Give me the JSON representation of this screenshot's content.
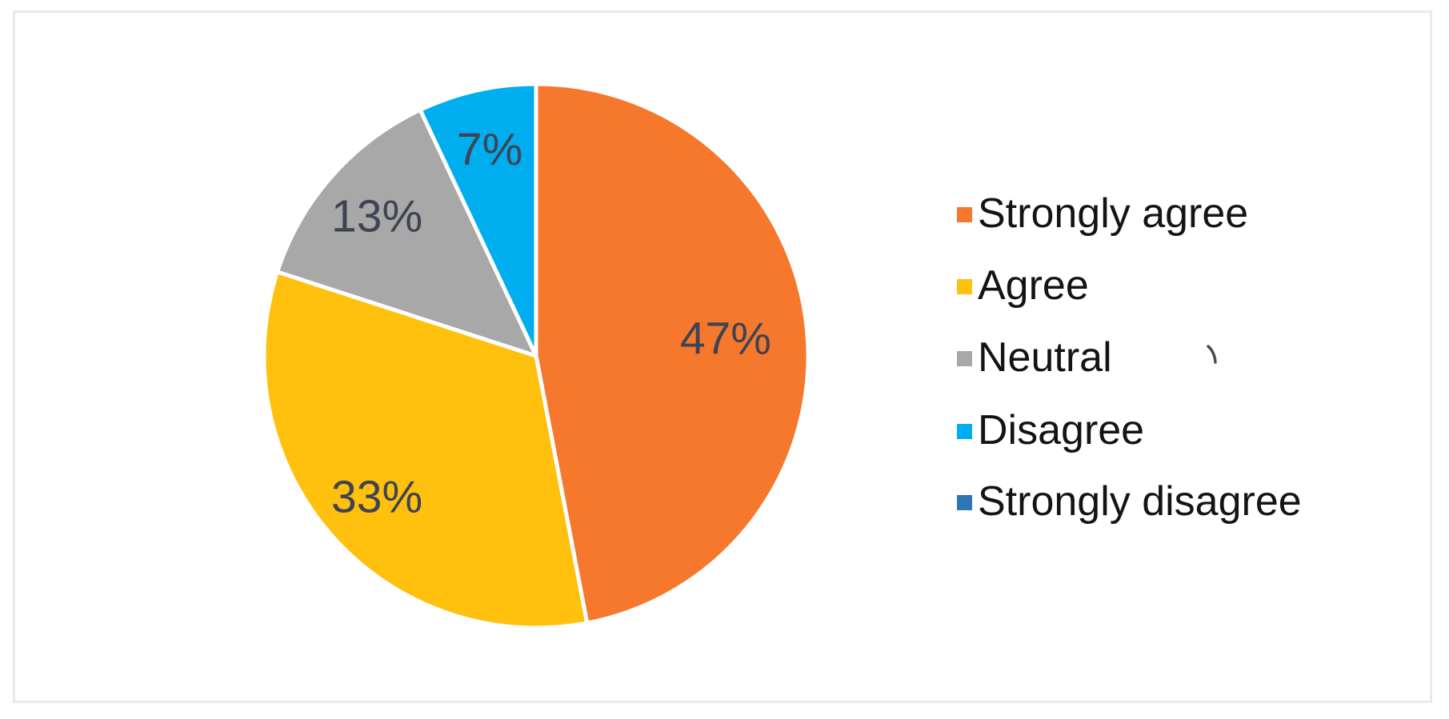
{
  "figure": {
    "background_color": "#ffffff",
    "frame_border_color": "#eaeaea"
  },
  "chart_data": {
    "type": "pie",
    "title": "",
    "categories": [
      "Strongly agree",
      "Agree",
      "Neutral",
      "Disagree",
      "Strongly disagree"
    ],
    "values": [
      47,
      33,
      13,
      7,
      0
    ],
    "data_labels": [
      "47%",
      "33%",
      "13%",
      "7%",
      ""
    ],
    "colors": [
      "#F6782D",
      "#FFC00E",
      "#A8A8A8",
      "#00AEEF",
      "#2E75B6"
    ],
    "start_angle_deg": 0,
    "direction": "clockwise",
    "legend_position": "right",
    "grid": "off",
    "data_label_color": "#3E4452",
    "legend_text_color": "#141414"
  }
}
